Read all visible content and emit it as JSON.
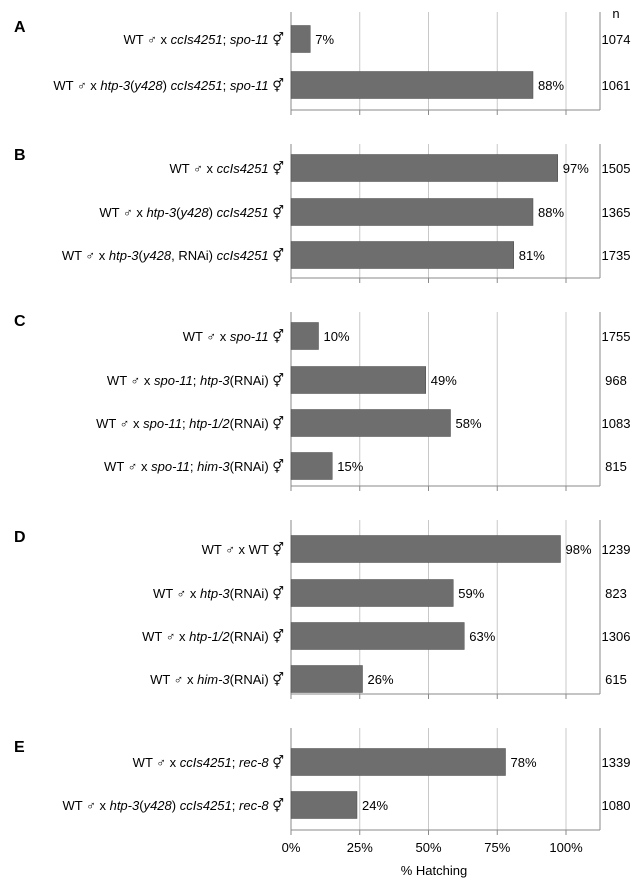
{
  "chart_data": {
    "type": "bar",
    "orientation": "horizontal",
    "xlabel": "% Hatching",
    "xlim": [
      0,
      100
    ],
    "xticks": [
      "0%",
      "25%",
      "50%",
      "75%",
      "100%"
    ],
    "n_header": "n",
    "grid": true,
    "panels": [
      {
        "label": "A",
        "rows": [
          {
            "segments": [
              {
                "t": "WT ♂ x "
              },
              {
                "t": "ccIs4251",
                "i": true
              },
              {
                "t": "; "
              },
              {
                "t": "spo-11",
                "i": true
              },
              {
                "t": " ⚥"
              }
            ],
            "value": 7,
            "value_label": "7%",
            "n": "1074"
          },
          {
            "segments": [
              {
                "t": "WT ♂ x "
              },
              {
                "t": "htp-3",
                "i": true
              },
              {
                "t": "("
              },
              {
                "t": "y428",
                "i": true
              },
              {
                "t": ") "
              },
              {
                "t": "ccIs4251",
                "i": true
              },
              {
                "t": "; "
              },
              {
                "t": "spo-11",
                "i": true
              },
              {
                "t": " ⚥"
              }
            ],
            "value": 88,
            "value_label": "88%",
            "n": "1061"
          }
        ]
      },
      {
        "label": "B",
        "rows": [
          {
            "segments": [
              {
                "t": "WT ♂ x "
              },
              {
                "t": "ccIs4251",
                "i": true
              },
              {
                "t": " ⚥"
              }
            ],
            "value": 97,
            "value_label": "97%",
            "n": "1505"
          },
          {
            "segments": [
              {
                "t": "WT ♂ x "
              },
              {
                "t": "htp-3",
                "i": true
              },
              {
                "t": "("
              },
              {
                "t": "y428",
                "i": true
              },
              {
                "t": ") "
              },
              {
                "t": "ccIs4251",
                "i": true
              },
              {
                "t": " ⚥"
              }
            ],
            "value": 88,
            "value_label": "88%",
            "n": "1365"
          },
          {
            "segments": [
              {
                "t": "WT ♂ x "
              },
              {
                "t": "htp-3",
                "i": true
              },
              {
                "t": "("
              },
              {
                "t": "y428",
                "i": true
              },
              {
                "t": ", RNAi) "
              },
              {
                "t": "ccIs4251",
                "i": true
              },
              {
                "t": " ⚥"
              }
            ],
            "value": 81,
            "value_label": "81%",
            "n": "1735"
          }
        ]
      },
      {
        "label": "C",
        "rows": [
          {
            "segments": [
              {
                "t": "WT ♂ x "
              },
              {
                "t": "spo-11",
                "i": true
              },
              {
                "t": " ⚥"
              }
            ],
            "value": 10,
            "value_label": "10%",
            "n": "1755"
          },
          {
            "segments": [
              {
                "t": "WT ♂ x "
              },
              {
                "t": "spo-11",
                "i": true
              },
              {
                "t": "; "
              },
              {
                "t": "htp-3",
                "i": true
              },
              {
                "t": "(RNAi) ⚥"
              }
            ],
            "value": 49,
            "value_label": "49%",
            "n": "968"
          },
          {
            "segments": [
              {
                "t": "WT ♂ x "
              },
              {
                "t": "spo-11",
                "i": true
              },
              {
                "t": "; "
              },
              {
                "t": "htp-1/2",
                "i": true
              },
              {
                "t": "(RNAi) ⚥"
              }
            ],
            "value": 58,
            "value_label": "58%",
            "n": "1083"
          },
          {
            "segments": [
              {
                "t": "WT ♂ x "
              },
              {
                "t": "spo-11",
                "i": true
              },
              {
                "t": "; "
              },
              {
                "t": "him-3",
                "i": true
              },
              {
                "t": "(RNAi) ⚥"
              }
            ],
            "value": 15,
            "value_label": "15%",
            "n": "815"
          }
        ]
      },
      {
        "label": "D",
        "rows": [
          {
            "segments": [
              {
                "t": "WT ♂ x WT ⚥"
              }
            ],
            "value": 98,
            "value_label": "98%",
            "n": "1239"
          },
          {
            "segments": [
              {
                "t": "WT ♂ x "
              },
              {
                "t": "htp-3",
                "i": true
              },
              {
                "t": "(RNAi) ⚥"
              }
            ],
            "value": 59,
            "value_label": "59%",
            "n": "823"
          },
          {
            "segments": [
              {
                "t": "WT ♂ x "
              },
              {
                "t": "htp-1/2",
                "i": true
              },
              {
                "t": "(RNAi) ⚥"
              }
            ],
            "value": 63,
            "value_label": "63%",
            "n": "1306"
          },
          {
            "segments": [
              {
                "t": "WT ♂ x "
              },
              {
                "t": "him-3",
                "i": true
              },
              {
                "t": "(RNAi) ⚥"
              }
            ],
            "value": 26,
            "value_label": "26%",
            "n": "615"
          }
        ]
      },
      {
        "label": "E",
        "rows": [
          {
            "segments": [
              {
                "t": "WT ♂ x "
              },
              {
                "t": "ccIs4251",
                "i": true
              },
              {
                "t": "; "
              },
              {
                "t": "rec-8",
                "i": true
              },
              {
                "t": " ⚥"
              }
            ],
            "value": 78,
            "value_label": "78%",
            "n": "1339"
          },
          {
            "segments": [
              {
                "t": "WT ♂ x "
              },
              {
                "t": "htp-3",
                "i": true
              },
              {
                "t": "("
              },
              {
                "t": "y428",
                "i": true
              },
              {
                "t": ") "
              },
              {
                "t": "ccIs4251",
                "i": true
              },
              {
                "t": "; "
              },
              {
                "t": "rec-8",
                "i": true
              },
              {
                "t": " ⚥"
              }
            ],
            "value": 24,
            "value_label": "24%",
            "n": "1080"
          }
        ]
      }
    ]
  },
  "colors": {
    "bar": "#6e6e6e",
    "grid": "#c8c8c8",
    "frame": "#8a8a8a"
  }
}
